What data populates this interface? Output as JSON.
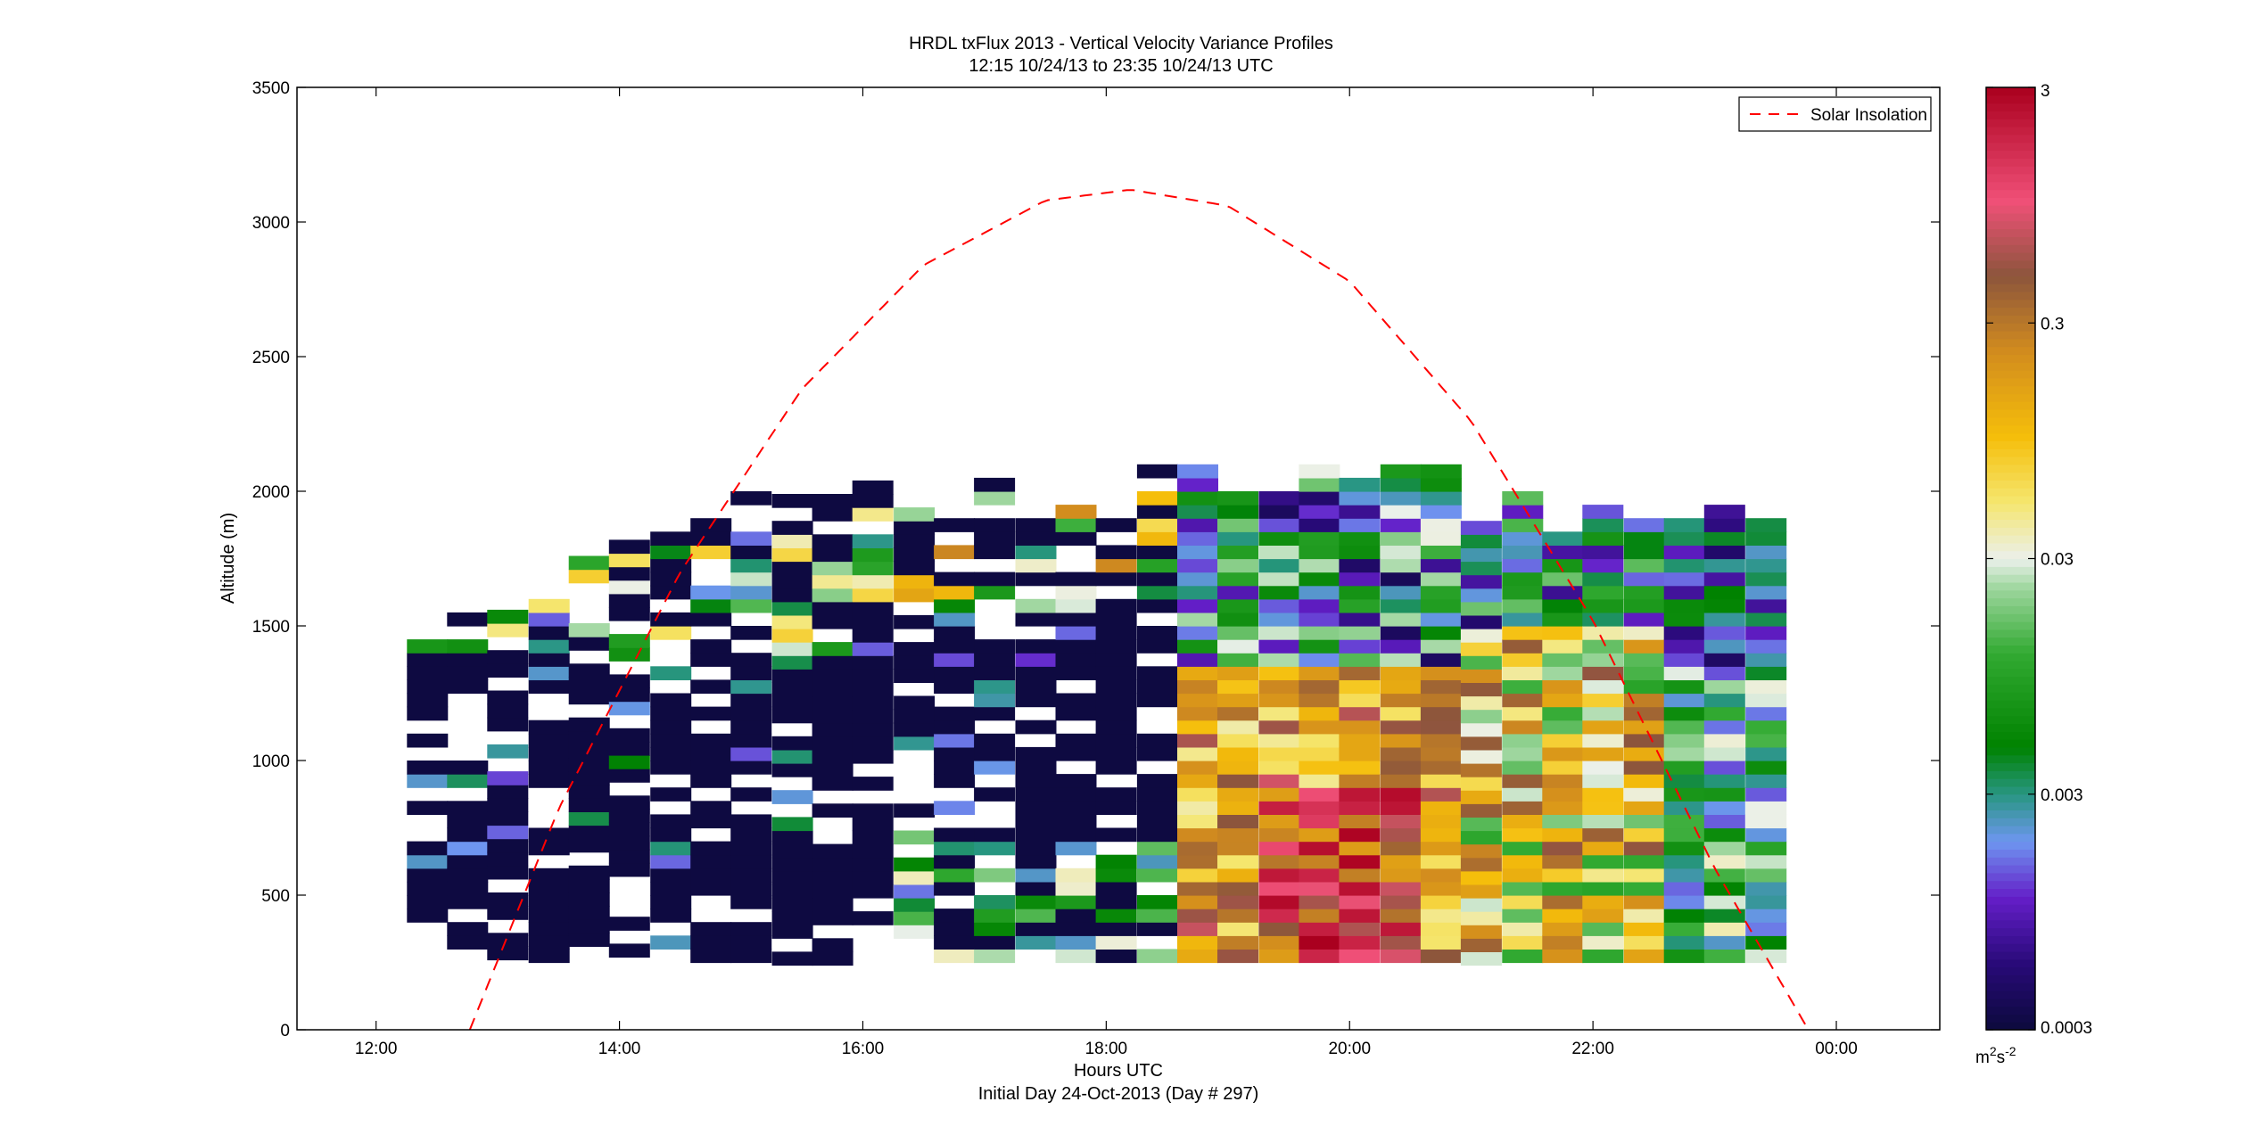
{
  "chart_data": {
    "type": "heatmap",
    "title": "HRDL txFlux 2013 - Vertical Velocity Variance Profiles",
    "subtitle": "12:15 10/24/13 to 23:35 10/24/13  UTC",
    "xlabel": "Hours UTC",
    "xlabel2": "Initial Day 24-Oct-2013 (Day # 297)",
    "ylabel": "Altitude (m)",
    "xlim": [
      11.35,
      24.85
    ],
    "ylim": [
      0,
      3500
    ],
    "x_ticks": [
      12,
      14,
      16,
      18,
      20,
      22,
      24
    ],
    "x_tick_labels": [
      "12:00",
      "14:00",
      "16:00",
      "18:00",
      "20:00",
      "22:00",
      "00:00"
    ],
    "y_ticks": [
      0,
      500,
      1000,
      1500,
      2000,
      2500,
      3000,
      3500
    ],
    "y_tick_labels": [
      "0",
      "500",
      "1000",
      "1500",
      "2000",
      "2500",
      "3000",
      "3500"
    ],
    "colorbar": {
      "scale": "log",
      "range": [
        0.0003,
        3
      ],
      "ticks": [
        0.0003,
        0.003,
        0.03,
        0.3,
        3
      ],
      "tick_labels": [
        "0.0003",
        "0.003",
        "0.03",
        "0.3",
        "3"
      ],
      "unit_base": "m",
      "unit_base_sup": "2",
      "unit_tail": "s",
      "unit_tail_sup": "-2"
    },
    "legend": {
      "label": "Solar Insolation",
      "placement": "top-right",
      "color": "#ff0000",
      "style": "dashed"
    },
    "solar_insolation": {
      "peak_time": 18.2,
      "peak_altitude": 3120,
      "points": [
        [
          12.77,
          0
        ],
        [
          13.5,
          820
        ],
        [
          14.5,
          1700
        ],
        [
          15.5,
          2380
        ],
        [
          16.5,
          2840
        ],
        [
          17.5,
          3080
        ],
        [
          18.2,
          3120
        ],
        [
          19,
          3060
        ],
        [
          20,
          2780
        ],
        [
          21,
          2260
        ],
        [
          22,
          1520
        ],
        [
          23,
          600
        ],
        [
          23.77,
          0
        ]
      ]
    },
    "profile_times": [
      12.42,
      12.75,
      13.08,
      13.42,
      13.75,
      14.08,
      14.42,
      14.75,
      15.08,
      15.42,
      15.75,
      16.08,
      16.42,
      16.75,
      17.08,
      17.42,
      17.75,
      18.08,
      18.42,
      18.75,
      19.08,
      19.42,
      19.75,
      20.08,
      20.42,
      20.75,
      21.08,
      21.42,
      21.75,
      22.08,
      22.42,
      22.75,
      23.08,
      23.42
    ],
    "profile_tops_m": [
      1550,
      1550,
      1600,
      1580,
      1750,
      1820,
      1850,
      1900,
      2000,
      2000,
      1950,
      2000,
      2000,
      1900,
      2030,
      1950,
      1920,
      1900,
      2080,
      2070,
      1970,
      1980,
      2060,
      2050,
      2080,
      2070,
      1870,
      1960,
      1820,
      1950,
      1880,
      1900,
      1920,
      1880
    ],
    "profile_bottoms_m": [
      250,
      250,
      260,
      250,
      260,
      270,
      250,
      250,
      250,
      240,
      240,
      240,
      240,
      250,
      250,
      250,
      250,
      250,
      250,
      250,
      250,
      250,
      250,
      250,
      250,
      250,
      240,
      250,
      250,
      250,
      250,
      250,
      250,
      250
    ],
    "cell_height_m": 50,
    "log10_variance_regimes": [
      {
        "from": 12.42,
        "to": 16.2,
        "bulk": -3.5,
        "near_top": -2.3
      },
      {
        "from": 16.2,
        "to": 18.6,
        "bulk": -3.3,
        "near_surface": -2.2
      },
      {
        "from": 18.6,
        "to": 21.0,
        "bulk": -0.9,
        "core_near_surface": 0.4
      },
      {
        "from": 21.0,
        "to": 22.6,
        "bulk": -1.1
      },
      {
        "from": 22.6,
        "to": 23.5,
        "bulk": -2.3
      }
    ]
  }
}
